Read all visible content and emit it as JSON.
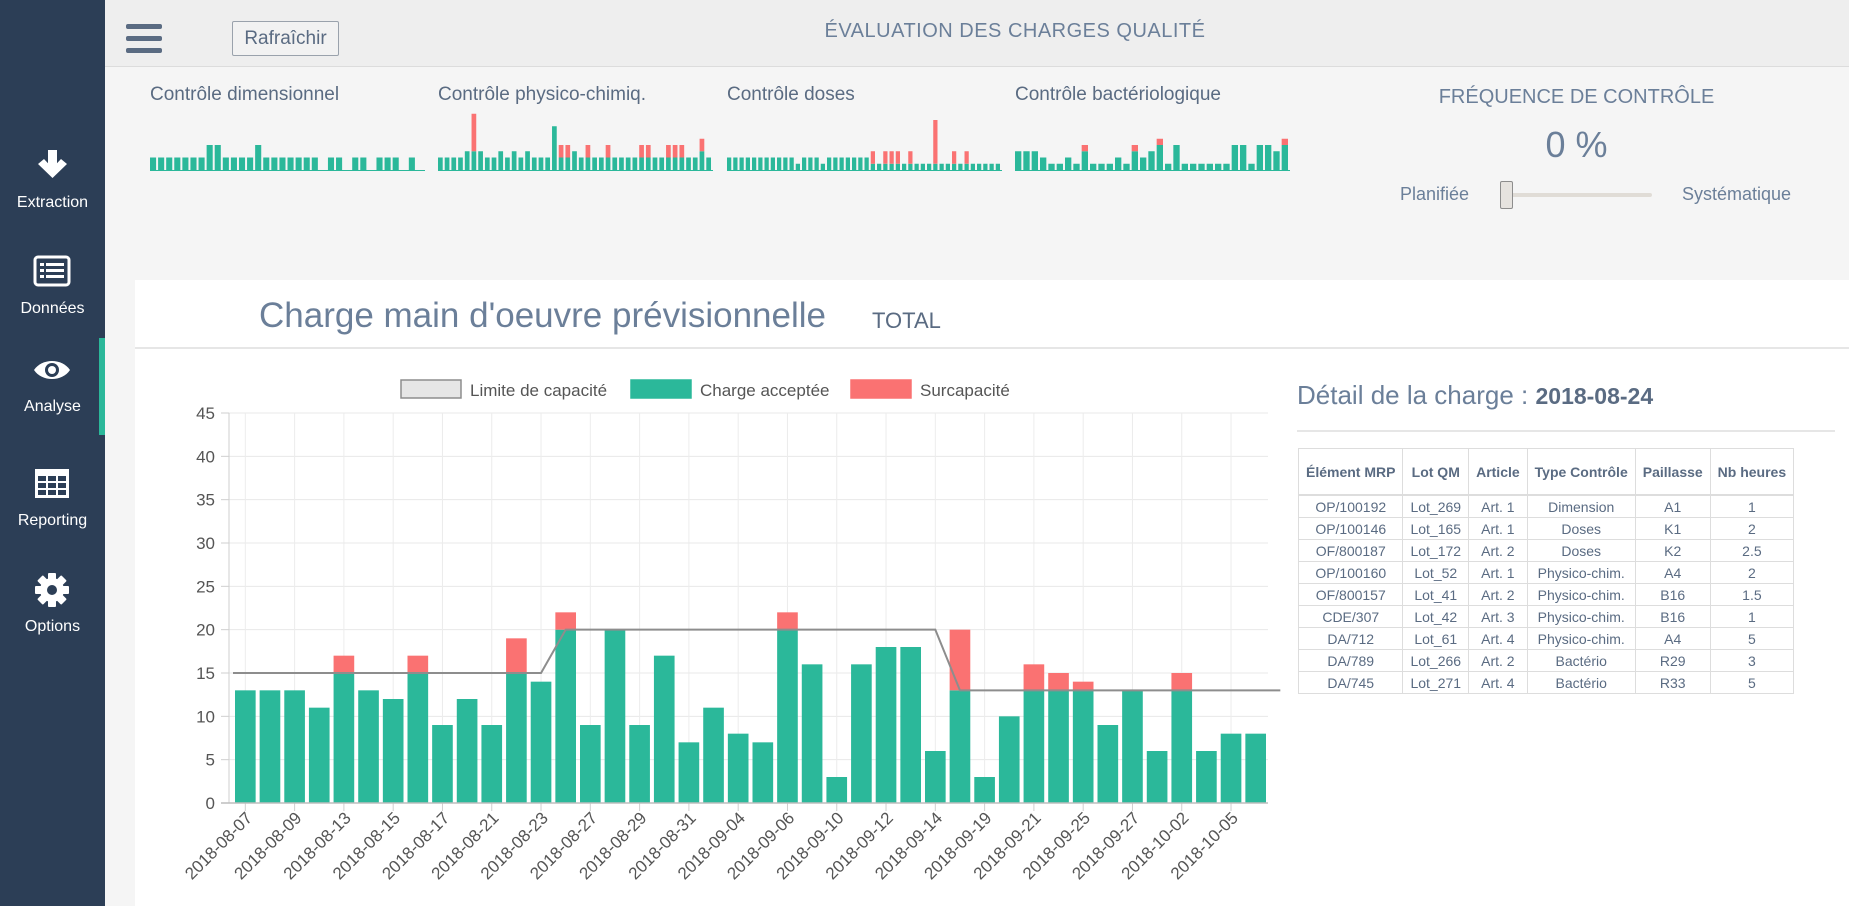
{
  "sidebar": {
    "items": [
      {
        "label": "Extraction",
        "icon": "download-arrow-icon"
      },
      {
        "label": "Données",
        "icon": "list-icon"
      },
      {
        "label": "Analyse",
        "icon": "eye-icon"
      },
      {
        "label": "Reporting",
        "icon": "table-grid-icon"
      },
      {
        "label": "Options",
        "icon": "gear-icon"
      }
    ],
    "active": "Analyse"
  },
  "header": {
    "menu_icon": "hamburger-menu-icon",
    "refresh_label": "Rafraîchir",
    "title": "ÉVALUATION DES CHARGES QUALITÉ"
  },
  "sparklines": [
    {
      "title": "Contrôle dimensionnel",
      "values": [
        [
          1,
          0
        ],
        [
          1,
          0
        ],
        [
          1,
          0
        ],
        [
          1,
          0
        ],
        [
          1,
          0
        ],
        [
          1,
          0
        ],
        [
          1,
          0
        ],
        [
          2,
          0
        ],
        [
          2,
          0
        ],
        [
          1,
          0
        ],
        [
          1,
          0
        ],
        [
          1,
          0
        ],
        [
          1,
          0
        ],
        [
          2,
          0
        ],
        [
          1,
          0
        ],
        [
          1,
          0
        ],
        [
          1,
          0
        ],
        [
          1,
          0
        ],
        [
          1,
          0
        ],
        [
          1,
          0
        ],
        [
          1,
          0
        ],
        [
          0,
          0
        ],
        [
          1,
          0
        ],
        [
          1,
          0
        ],
        [
          0,
          0
        ],
        [
          1,
          0
        ],
        [
          1,
          0
        ],
        [
          0,
          0
        ],
        [
          1,
          0
        ],
        [
          1,
          0
        ],
        [
          1,
          0
        ],
        [
          0,
          0
        ],
        [
          1,
          0
        ],
        [
          0,
          0
        ]
      ]
    },
    {
      "title": "Contrôle physico-chimiq.",
      "values": [
        [
          1,
          0
        ],
        [
          1,
          0
        ],
        [
          1,
          0
        ],
        [
          1,
          0
        ],
        [
          1.5,
          0
        ],
        [
          1.5,
          3
        ],
        [
          1.5,
          0
        ],
        [
          1,
          0
        ],
        [
          1,
          0
        ],
        [
          1.5,
          0
        ],
        [
          1,
          0
        ],
        [
          1.5,
          0
        ],
        [
          1,
          0
        ],
        [
          1.5,
          0
        ],
        [
          1,
          0
        ],
        [
          1,
          0
        ],
        [
          1,
          0
        ],
        [
          3.5,
          0
        ],
        [
          1,
          1
        ],
        [
          1,
          1
        ],
        [
          1.5,
          0
        ],
        [
          1,
          0
        ],
        [
          1,
          1
        ],
        [
          1,
          0
        ],
        [
          1,
          0
        ],
        [
          1,
          1
        ],
        [
          1,
          0
        ],
        [
          1,
          0
        ],
        [
          1,
          0
        ],
        [
          1,
          0
        ],
        [
          1,
          1
        ],
        [
          1,
          1
        ],
        [
          1,
          0
        ],
        [
          1,
          0
        ],
        [
          1,
          1
        ],
        [
          1,
          1
        ],
        [
          1,
          1
        ],
        [
          1,
          0
        ],
        [
          1,
          0
        ],
        [
          1.5,
          1
        ],
        [
          1,
          0
        ]
      ]
    },
    {
      "title": "Contrôle doses",
      "values": [
        [
          1,
          0
        ],
        [
          1,
          0
        ],
        [
          1,
          0
        ],
        [
          1,
          0
        ],
        [
          1,
          0
        ],
        [
          1,
          0
        ],
        [
          1,
          0
        ],
        [
          1,
          0
        ],
        [
          1,
          0
        ],
        [
          1,
          0
        ],
        [
          1,
          0
        ],
        [
          0.5,
          0
        ],
        [
          1,
          0
        ],
        [
          1,
          0
        ],
        [
          1,
          0
        ],
        [
          0.5,
          0
        ],
        [
          1,
          0
        ],
        [
          1,
          0
        ],
        [
          1,
          0
        ],
        [
          1,
          0
        ],
        [
          1,
          0
        ],
        [
          1,
          0
        ],
        [
          1,
          0
        ],
        [
          0.5,
          1
        ],
        [
          0.5,
          0
        ],
        [
          0.5,
          1
        ],
        [
          0.5,
          1
        ],
        [
          0.5,
          1
        ],
        [
          0.5,
          0
        ],
        [
          0.5,
          1
        ],
        [
          0.5,
          0
        ],
        [
          0.5,
          0
        ],
        [
          0.5,
          0
        ],
        [
          0.5,
          3.5
        ],
        [
          0.5,
          0
        ],
        [
          0.5,
          0
        ],
        [
          0.5,
          1
        ],
        [
          0.5,
          0
        ],
        [
          0.5,
          1
        ],
        [
          0.5,
          0
        ],
        [
          0.5,
          0
        ],
        [
          0.5,
          0
        ],
        [
          0.5,
          0
        ],
        [
          0.5,
          0
        ]
      ]
    },
    {
      "title": "Contrôle bactériologique",
      "values": [
        [
          1.5,
          0
        ],
        [
          1.5,
          0
        ],
        [
          1.5,
          0
        ],
        [
          1,
          0
        ],
        [
          0.5,
          0
        ],
        [
          0.5,
          0
        ],
        [
          1,
          0
        ],
        [
          0.5,
          0
        ],
        [
          1.5,
          0.5
        ],
        [
          0.5,
          0
        ],
        [
          0.5,
          0
        ],
        [
          0.5,
          0
        ],
        [
          1,
          0
        ],
        [
          0.5,
          0
        ],
        [
          1.5,
          0.5
        ],
        [
          1,
          0
        ],
        [
          1.5,
          0
        ],
        [
          2,
          0.5
        ],
        [
          0.5,
          0
        ],
        [
          2,
          0
        ],
        [
          0.5,
          0
        ],
        [
          0.5,
          0
        ],
        [
          0.5,
          0
        ],
        [
          0.5,
          0
        ],
        [
          0.5,
          0
        ],
        [
          0.5,
          0
        ],
        [
          2,
          0
        ],
        [
          2,
          0
        ],
        [
          0.5,
          0
        ],
        [
          2,
          0
        ],
        [
          2,
          0
        ],
        [
          1.5,
          0
        ],
        [
          2,
          0.5
        ]
      ]
    }
  ],
  "frequency": {
    "title": "FRÉQUENCE DE CONTRÔLE",
    "value": "0 %",
    "left_label": "Planifiée",
    "right_label": "Systématique",
    "slider_fraction": 0
  },
  "panel": {
    "title": "Charge main d'oeuvre prévisionnelle",
    "subtitle": "TOTAL"
  },
  "chart_data": {
    "type": "bar",
    "stacked": true,
    "legend": [
      {
        "label": "Limite de capacité",
        "color": "#e6e6e6",
        "border": "#8d8d8d"
      },
      {
        "label": "Charge acceptée",
        "color": "#2bb89a",
        "border": "#2bb89a"
      },
      {
        "label": "Surcapacité",
        "color": "#fa7272",
        "border": "#fa7272"
      }
    ],
    "ylim": [
      0,
      45
    ],
    "yticks": [
      0,
      5,
      10,
      15,
      20,
      25,
      30,
      35,
      40,
      45
    ],
    "x_tick_labels": [
      "2018-08-07",
      "2018-08-09",
      "2018-08-13",
      "2018-08-15",
      "2018-08-17",
      "2018-08-21",
      "2018-08-23",
      "2018-08-27",
      "2018-08-29",
      "2018-08-31",
      "2018-09-04",
      "2018-09-06",
      "2018-09-10",
      "2018-09-12",
      "2018-09-14",
      "2018-09-19",
      "2018-09-21",
      "2018-09-25",
      "2018-09-27",
      "2018-10-02",
      "2018-10-05"
    ],
    "series": [
      {
        "name": "Charge acceptée",
        "values": [
          13,
          13,
          13,
          11,
          15,
          13,
          12,
          15,
          9,
          12,
          9,
          15,
          14,
          20,
          9,
          20,
          9,
          17,
          7,
          11,
          8,
          7,
          20,
          16,
          3,
          16,
          18,
          18,
          6,
          13,
          3,
          10,
          13,
          13,
          13,
          9,
          13,
          6,
          13,
          6,
          8,
          8
        ]
      },
      {
        "name": "Surcapacité",
        "values": [
          0,
          0,
          0,
          0,
          2,
          0,
          0,
          2,
          0,
          0,
          0,
          4,
          0,
          2,
          0,
          0,
          0,
          0,
          0,
          0,
          0,
          0,
          2,
          0,
          0,
          0,
          0,
          0,
          0,
          7,
          0,
          0,
          3,
          2,
          1,
          0,
          0,
          0,
          2,
          0,
          0,
          0
        ]
      },
      {
        "name": "Limite de capacité",
        "type": "line",
        "points": [
          [
            0,
            15
          ],
          [
            12.5,
            15
          ],
          [
            13.5,
            20
          ],
          [
            28.5,
            20
          ],
          [
            29.5,
            13
          ],
          [
            42.5,
            13
          ]
        ]
      }
    ]
  },
  "detail": {
    "title": "Détail de la charge :",
    "date": "2018-08-24",
    "columns": [
      "Élément MRP",
      "Lot QM",
      "Article",
      "Type Contrôle",
      "Paillasse",
      "Nb heures"
    ],
    "rows": [
      [
        "OP/100192",
        "Lot_269",
        "Art. 1",
        "Dimension",
        "A1",
        "1"
      ],
      [
        "OP/100146",
        "Lot_165",
        "Art. 1",
        "Doses",
        "K1",
        "2"
      ],
      [
        "OF/800187",
        "Lot_172",
        "Art. 2",
        "Doses",
        "K2",
        "2.5"
      ],
      [
        "OP/100160",
        "Lot_52",
        "Art. 1",
        "Physico-chim.",
        "A4",
        "2"
      ],
      [
        "OF/800157",
        "Lot_41",
        "Art. 2",
        "Physico-chim.",
        "B16",
        "1.5"
      ],
      [
        "CDE/307",
        "Lot_42",
        "Art. 3",
        "Physico-chim.",
        "B16",
        "1"
      ],
      [
        "DA/712",
        "Lot_61",
        "Art. 4",
        "Physico-chim.",
        "A4",
        "5"
      ],
      [
        "DA/789",
        "Lot_266",
        "Art. 2",
        "Bactério",
        "R29",
        "3"
      ],
      [
        "DA/745",
        "Lot_271",
        "Art. 4",
        "Bactério",
        "R33",
        "5"
      ]
    ]
  }
}
